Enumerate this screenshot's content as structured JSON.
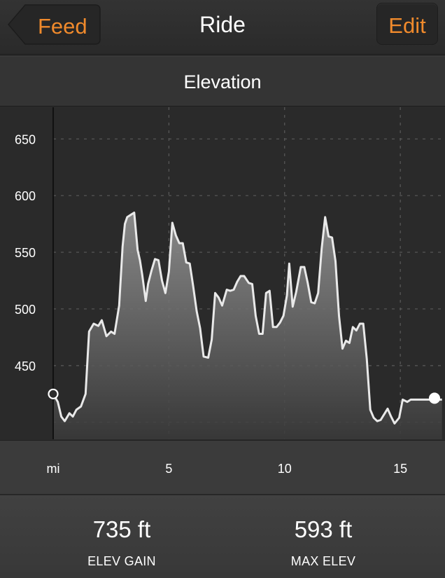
{
  "navbar": {
    "back_label": "Feed",
    "title": "Ride",
    "edit_label": "Edit",
    "accent_color": "#f08a2c"
  },
  "section": {
    "title": "Elevation"
  },
  "chart_data": {
    "type": "area",
    "title": "Elevation",
    "xlabel": "mi",
    "ylabel": "",
    "xlim": [
      0,
      16.9
    ],
    "ylim": [
      385,
      678
    ],
    "x_ticks": [
      5,
      10,
      15
    ],
    "y_ticks": [
      450,
      500,
      550,
      600,
      650
    ],
    "grid": true,
    "x": [
      0,
      0.2,
      0.35,
      0.5,
      0.7,
      0.85,
      1.0,
      1.2,
      1.4,
      1.55,
      1.75,
      1.95,
      2.1,
      2.3,
      2.5,
      2.65,
      2.85,
      3.0,
      3.1,
      3.2,
      3.35,
      3.5,
      3.65,
      3.75,
      3.85,
      4.0,
      4.1,
      4.25,
      4.4,
      4.55,
      4.7,
      4.85,
      5.0,
      5.15,
      5.3,
      5.45,
      5.6,
      5.75,
      5.9,
      6.05,
      6.2,
      6.35,
      6.5,
      6.7,
      6.85,
      7.0,
      7.15,
      7.3,
      7.5,
      7.65,
      7.8,
      7.95,
      8.1,
      8.25,
      8.45,
      8.6,
      8.75,
      8.9,
      9.05,
      9.2,
      9.35,
      9.5,
      9.65,
      9.8,
      9.95,
      10.1,
      10.2,
      10.35,
      10.5,
      10.7,
      10.85,
      11.0,
      11.15,
      11.3,
      11.45,
      11.6,
      11.75,
      11.9,
      12.05,
      12.2,
      12.35,
      12.5,
      12.65,
      12.8,
      12.95,
      13.1,
      13.25,
      13.4,
      13.55,
      13.7,
      13.85,
      14.0,
      14.15,
      14.3,
      14.45,
      14.6,
      14.75,
      14.95,
      15.1,
      15.3,
      15.45,
      15.6,
      15.75,
      15.9,
      16.05,
      16.2,
      16.4,
      16.6,
      16.8
    ],
    "y": [
      425,
      418,
      405,
      401,
      408,
      405,
      411,
      414,
      425,
      480,
      487,
      485,
      490,
      476,
      480,
      478,
      503,
      555,
      575,
      581,
      583,
      585,
      552,
      543,
      530,
      507,
      522,
      534,
      544,
      543,
      525,
      514,
      533,
      576,
      565,
      558,
      558,
      541,
      540,
      520,
      498,
      483,
      458,
      457,
      473,
      514,
      510,
      503,
      517,
      516,
      517,
      524,
      529,
      529,
      523,
      522,
      494,
      478,
      478,
      514,
      516,
      484,
      484,
      488,
      494,
      512,
      540,
      502,
      515,
      537,
      537,
      523,
      506,
      505,
      514,
      553,
      581,
      564,
      563,
      542,
      494,
      465,
      472,
      470,
      484,
      481,
      487,
      487,
      456,
      411,
      404,
      401,
      402,
      407,
      412,
      405,
      399,
      404,
      420,
      418,
      420,
      420,
      420,
      420,
      420,
      420,
      420,
      420,
      420
    ],
    "start_marker": {
      "x": 0,
      "y": 425
    },
    "end_marker": {
      "x": 16.9,
      "y": 420
    }
  },
  "stats": {
    "elev_gain_value": "735 ft",
    "elev_gain_label": "ELEV GAIN",
    "max_elev_value": "593 ft",
    "max_elev_label": "MAX ELEV"
  },
  "colors": {
    "background": "#2a2a2a",
    "line": "#e9e9e9",
    "grid": "#5a5a5a"
  }
}
